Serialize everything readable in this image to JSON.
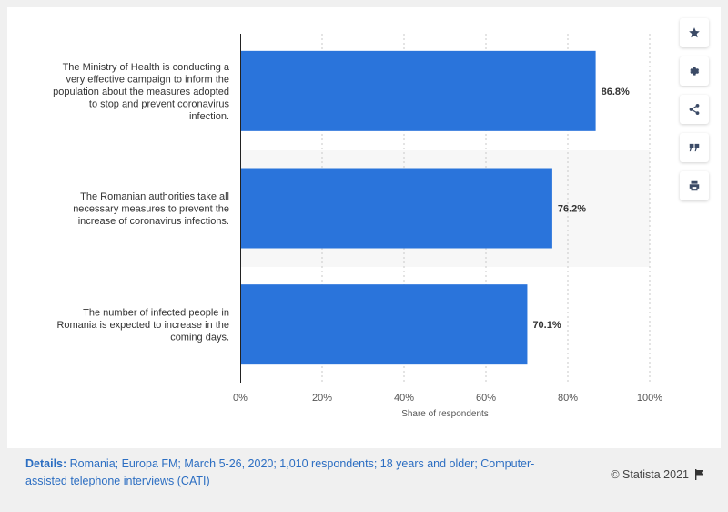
{
  "chart_data": {
    "type": "bar",
    "orientation": "horizontal",
    "categories": [
      "The Ministry of Health is conducting a very effective campaign to inform the population about the measures adopted to stop and prevent coronavirus infection.",
      "The Romanian authorities take all necessary measures to prevent the increase of coronavirus infections.",
      "The number of infected people in Romania is expected to increase in the coming days."
    ],
    "category_lines": [
      [
        "The Ministry of Health is conducting a",
        "very effective campaign to inform the",
        "population about the measures adopted",
        "to stop and prevent coronavirus",
        "infection."
      ],
      [
        "The Romanian authorities take all",
        "necessary measures to prevent the",
        "increase of coronavirus infections."
      ],
      [
        "The number of infected people in",
        "Romania is expected to increase in the",
        "coming days."
      ]
    ],
    "values": [
      86.8,
      76.2,
      70.1
    ],
    "value_labels": [
      "86.8%",
      "76.2%",
      "70.1%"
    ],
    "xlabel": "Share of respondents",
    "xlim": [
      0,
      100
    ],
    "xticks": [
      0,
      20,
      40,
      60,
      80,
      100
    ],
    "xtick_labels": [
      "0%",
      "20%",
      "40%",
      "60%",
      "80%",
      "100%"
    ],
    "bar_color": "#2a74db",
    "grid": true
  },
  "sidebar": {
    "buttons": [
      {
        "name": "star-icon"
      },
      {
        "name": "gear-icon"
      },
      {
        "name": "share-icon"
      },
      {
        "name": "quote-icon"
      },
      {
        "name": "print-icon"
      }
    ]
  },
  "footer": {
    "details_label": "Details:",
    "details_text": " Romania; Europa FM; March 5-26, 2020; 1,010 respondents; 18 years and older; Computer-assisted telephone interviews (CATI)",
    "credit": "© Statista 2021"
  }
}
